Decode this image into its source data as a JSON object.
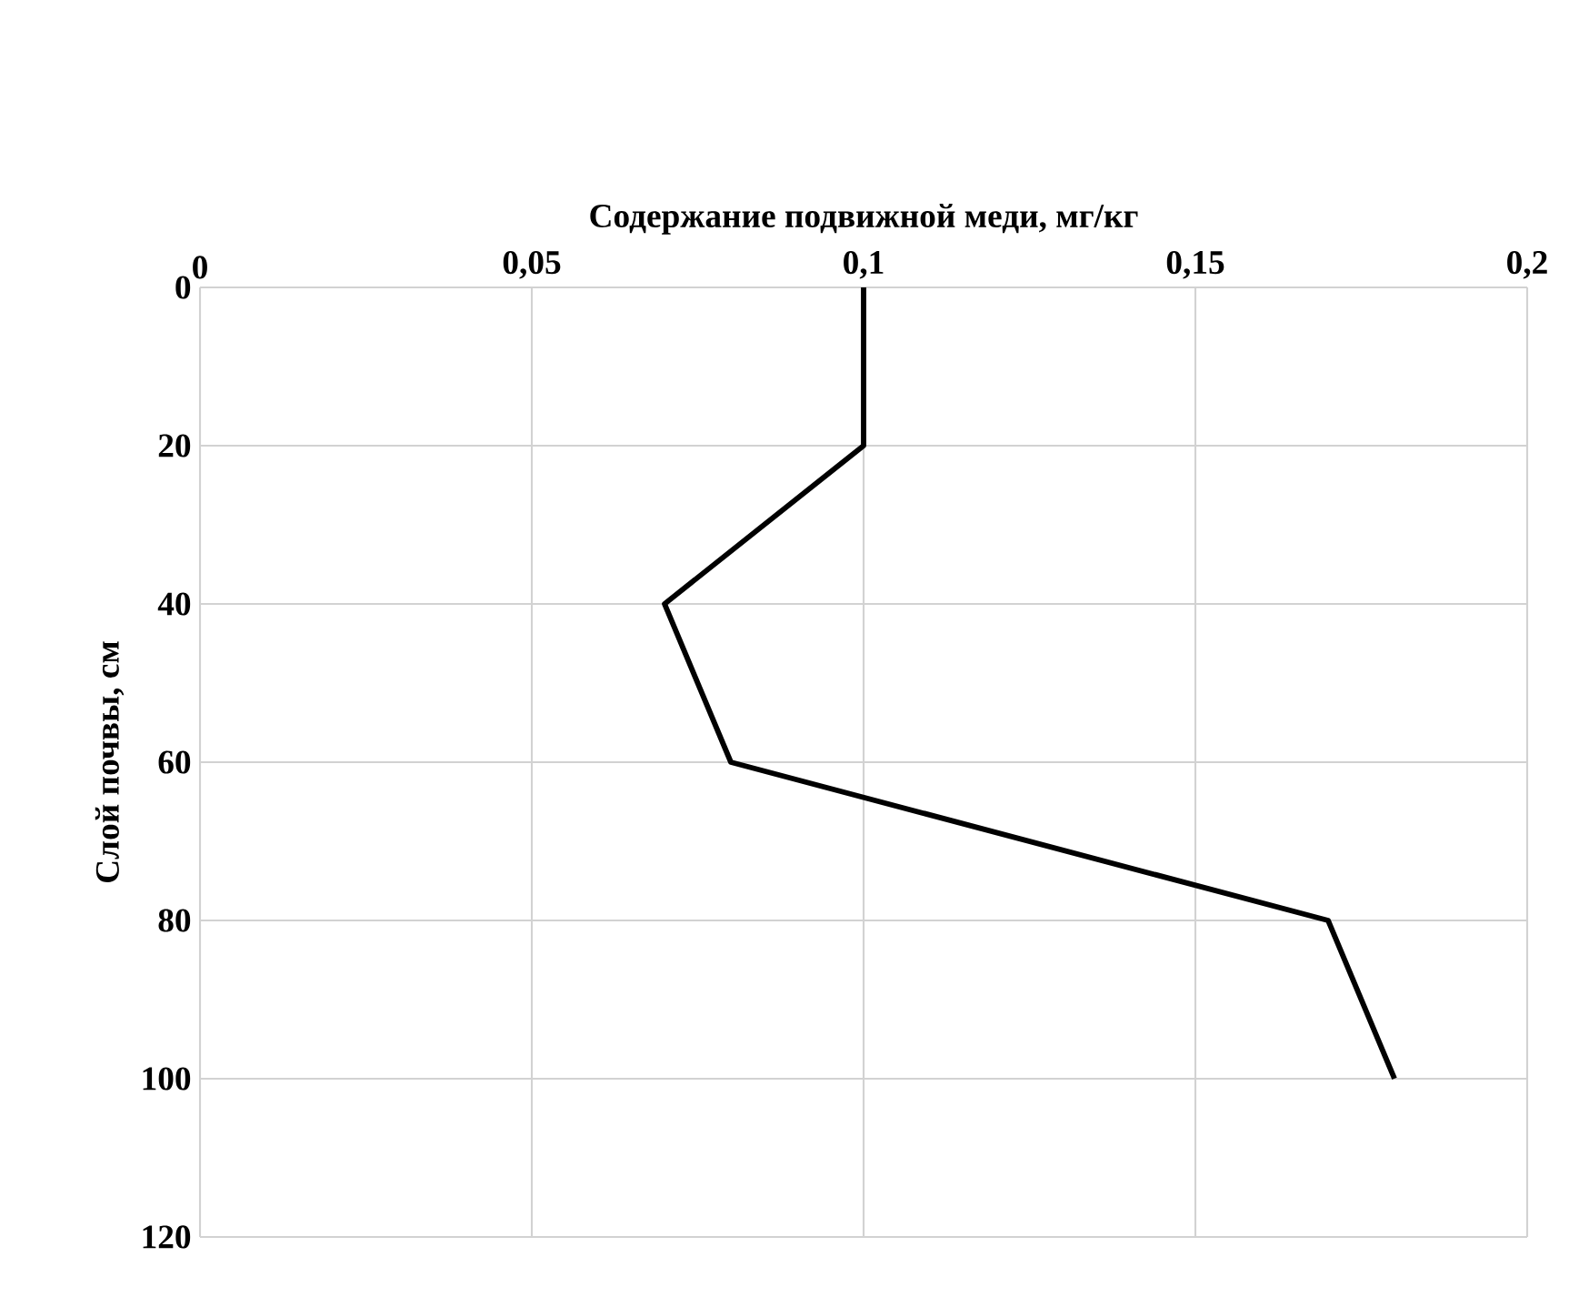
{
  "chart_data": {
    "type": "line",
    "xlabel": "Содержание подвижной меди, мг/кг",
    "ylabel": "Слой почвы, см",
    "x": [
      0.1,
      0.1,
      0.07,
      0.08,
      0.17,
      0.18
    ],
    "series": [
      {
        "color": "#000000",
        "values": [
          0,
          20,
          40,
          60,
          80,
          100
        ]
      }
    ],
    "xlim": [
      0,
      0.2
    ],
    "xticks": [
      0,
      {
        "value": 0.05,
        "label": "0,05"
      },
      {
        "value": 0.1,
        "label": "0,1"
      },
      {
        "value": 0.15,
        "label": "0,15"
      },
      {
        "value": 0.2,
        "label": "0,2"
      }
    ],
    "ylim": [
      120,
      0
    ],
    "yticks": [
      0,
      20,
      40,
      60,
      80,
      100,
      120
    ],
    "grid": true,
    "marker": "none",
    "line_style": "solid"
  }
}
